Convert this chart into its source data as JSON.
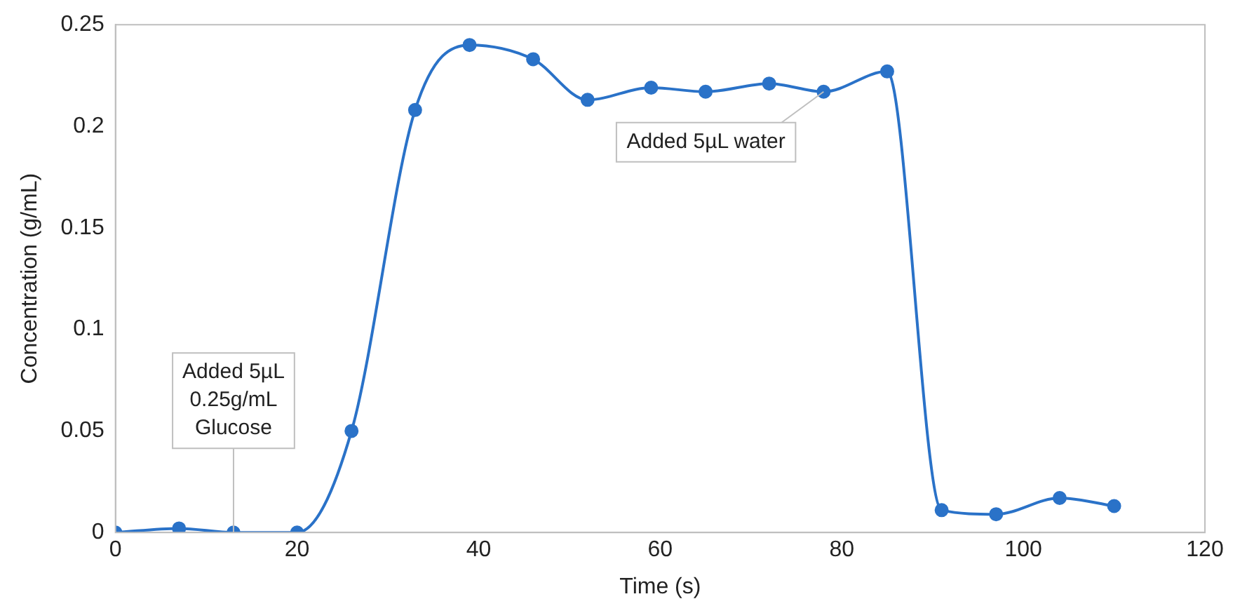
{
  "chart_data": {
    "type": "line",
    "xlabel": "Time (s)",
    "ylabel": "Concentration (g/mL)",
    "x": [
      0,
      7,
      13,
      20,
      26,
      33,
      39,
      46,
      52,
      59,
      65,
      72,
      78,
      85,
      91,
      97,
      104,
      110
    ],
    "series": [
      {
        "color": "#2a72c8",
        "values": [
          0,
          0.002,
          0,
          0,
          0.05,
          0.208,
          0.24,
          0.233,
          0.213,
          0.219,
          0.217,
          0.221,
          0.217,
          0.227,
          0.011,
          0.009,
          0.017,
          0.013
        ]
      }
    ],
    "xlim": [
      0,
      120
    ],
    "xticks": [
      0,
      20,
      40,
      60,
      80,
      100,
      120
    ],
    "ylim": [
      0,
      0.25
    ],
    "yticks": [
      0,
      0.05,
      0.1,
      0.15,
      0.2,
      0.25
    ],
    "grid": false,
    "legend": false,
    "marker": "circle",
    "line_style": "solid",
    "annotations": [
      {
        "text": "Added 5µL\n0.25g/mL\nGlucose",
        "x": 13,
        "y": 0
      },
      {
        "text": "Added 5µL water",
        "x": 78,
        "y": 0.217
      }
    ]
  }
}
